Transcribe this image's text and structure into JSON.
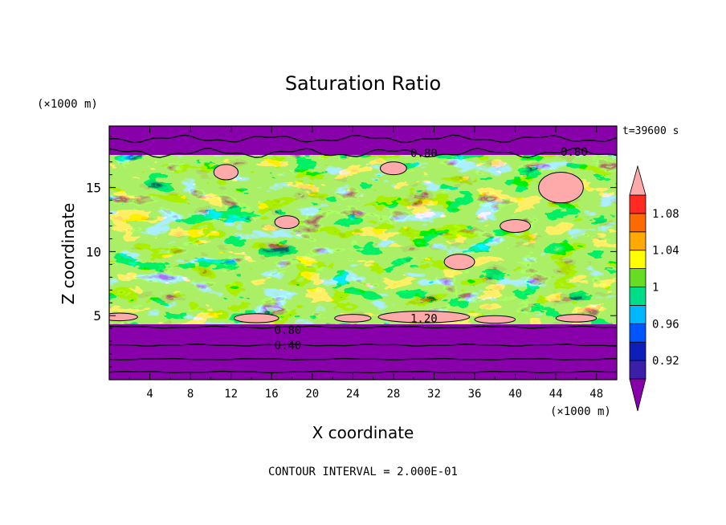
{
  "chart_data": {
    "type": "heatmap",
    "title": "Saturation Ratio",
    "xlabel": "X coordinate",
    "ylabel": "Z coordinate",
    "x_unit": "(×1000 m)",
    "y_unit": "(×1000 m)",
    "time_label": "t=39600 s",
    "footer": "CONTOUR INTERVAL = 2.000E-01",
    "xlim": [
      0,
      50
    ],
    "ylim": [
      0,
      19.8
    ],
    "x_ticks": [
      4,
      8,
      12,
      16,
      20,
      24,
      28,
      32,
      36,
      40,
      44,
      48
    ],
    "y_ticks": [
      5,
      10,
      15
    ],
    "colorbar": {
      "labels": [
        "1.08",
        "1.04",
        "1",
        "0.96",
        "0.92"
      ],
      "bands": [
        {
          "color": "#8800aa",
          "range": "< 0.90"
        },
        {
          "color": "#3a1fa8",
          "range": "0.90–0.92"
        },
        {
          "color": "#0d1fb8",
          "range": "0.92–0.94"
        },
        {
          "color": "#0055ff",
          "range": "0.94–0.96"
        },
        {
          "color": "#00b8ff",
          "range": "0.96–0.98"
        },
        {
          "color": "#00dd88",
          "range": "0.98–1.00"
        },
        {
          "color": "#66dd22",
          "range": "1.00–1.02"
        },
        {
          "color": "#ffff00",
          "range": "1.02–1.04"
        },
        {
          "color": "#ffaa00",
          "range": "1.04–1.06"
        },
        {
          "color": "#ff6a00",
          "range": "1.06–1.08"
        },
        {
          "color": "#ff2a20",
          "range": "1.08–1.10"
        },
        {
          "color": "#ffaaaa",
          "range": "> 1.10"
        }
      ]
    },
    "contour_labels": [
      {
        "text": "0.80",
        "x": 31,
        "z": 17.7
      },
      {
        "text": "0.80",
        "x": 45.8,
        "z": 17.8
      },
      {
        "text": "1.20",
        "x": 31,
        "z": 4.8
      },
      {
        "text": "0.80",
        "x": 17.6,
        "z": 3.9
      },
      {
        "text": "0.40",
        "x": 17.6,
        "z": 2.7
      }
    ]
  }
}
